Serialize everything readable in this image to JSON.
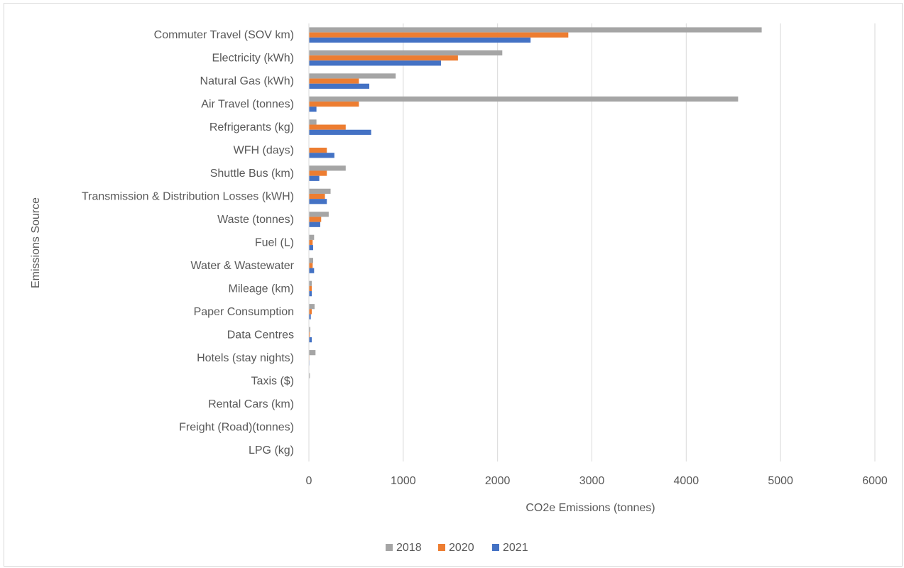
{
  "chart_data": {
    "type": "bar",
    "orientation": "horizontal",
    "title": "",
    "xlabel": "CO2e Emissions (tonnes)",
    "ylabel": "Emissions Source",
    "xlim": [
      0,
      6000
    ],
    "xticks": [
      "0",
      "1000",
      "2000",
      "3000",
      "4000",
      "5000",
      "6000"
    ],
    "grid": true,
    "legend_position": "bottom",
    "categories": [
      "Commuter Travel (SOV km)",
      "Electricity (kWh)",
      "Natural Gas (kWh)",
      "Air Travel (tonnes)",
      "Refrigerants (kg)",
      "WFH (days)",
      "Shuttle Bus (km)",
      "Transmission & Distribution Losses (kWH)",
      "Waste (tonnes)",
      "Fuel (L)",
      "Water & Wastewater",
      "Mileage (km)",
      "Paper Consumption",
      "Data Centres",
      "Hotels (stay nights)",
      "Taxis ($)",
      "Rental Cars (km)",
      "Freight (Road)(tonnes)",
      "LPG (kg)"
    ],
    "series": [
      {
        "name": "2018",
        "color": "#a5a5a5",
        "values": [
          4800,
          2050,
          920,
          4550,
          80,
          0,
          390,
          230,
          210,
          55,
          45,
          30,
          60,
          15,
          70,
          10,
          3,
          2,
          1
        ]
      },
      {
        "name": "2020",
        "color": "#ed7d31",
        "values": [
          2750,
          1580,
          530,
          530,
          390,
          190,
          190,
          170,
          130,
          40,
          40,
          30,
          30,
          10,
          5,
          3,
          2,
          1,
          1
        ]
      },
      {
        "name": "2021",
        "color": "#4472c4",
        "values": [
          2350,
          1400,
          640,
          80,
          660,
          270,
          110,
          190,
          120,
          45,
          55,
          30,
          20,
          30,
          5,
          3,
          2,
          1,
          1
        ]
      }
    ]
  }
}
